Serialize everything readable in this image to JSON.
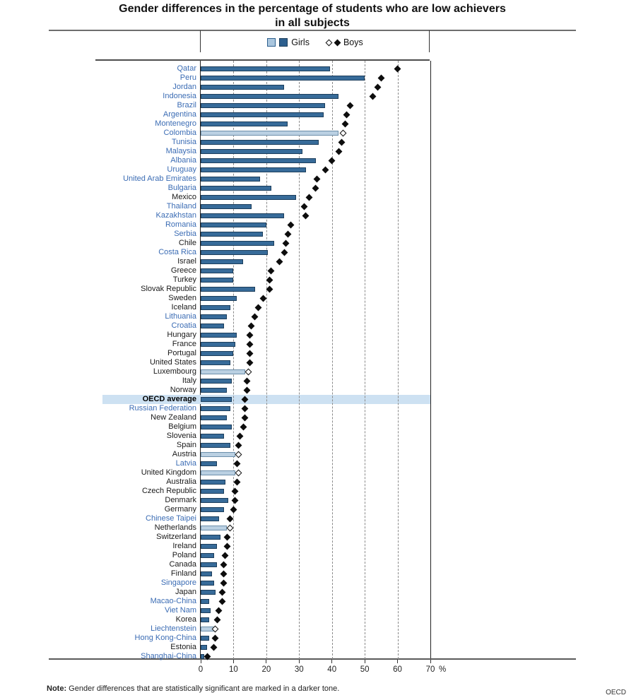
{
  "title": {
    "line1": "Gender differences in the percentage of students who are low achievers",
    "line2": "in all subjects"
  },
  "legend": {
    "girls_label": "Girls",
    "boys_label": "Boys"
  },
  "axis": {
    "ticks": [
      0,
      10,
      20,
      30,
      40,
      50,
      60,
      70
    ],
    "unit": "%",
    "min": 0,
    "max": 70
  },
  "note": {
    "prefix": "Note:",
    "text": "Gender differences that are statistically significant are marked in a darker tone."
  },
  "source": "OECD",
  "colors": {
    "bar_significant": "#376b99",
    "bar_not_significant": "#bad0e2",
    "diamond": "#0d0d0d",
    "partner_label": "#3b6cb4",
    "oecd_label": "#191919",
    "highlight_band": "#cde1f2",
    "gridline": "#8a8a8a"
  },
  "chart_data": {
    "type": "bar",
    "orientation": "horizontal",
    "title": "Gender differences in the percentage of students who are low achievers in all subjects",
    "xlabel": "%",
    "xlim": [
      0,
      70
    ],
    "grid": "vertical dashed lines every 10",
    "legend_position": "top-center",
    "series": [
      {
        "name": "Girls",
        "style": "bar"
      },
      {
        "name": "Boys",
        "style": "diamond"
      }
    ],
    "significance_note": "darker tone / filled diamond = statistically significant gender difference",
    "rows": [
      {
        "country": "Qatar",
        "group": "partner",
        "girls": 39.5,
        "boys": 60,
        "significant": true
      },
      {
        "country": "Peru",
        "group": "partner",
        "girls": 50,
        "boys": 55,
        "significant": true
      },
      {
        "country": "Jordan",
        "group": "partner",
        "girls": 25.5,
        "boys": 54,
        "significant": true
      },
      {
        "country": "Indonesia",
        "group": "partner",
        "girls": 42,
        "boys": 52.5,
        "significant": true
      },
      {
        "country": "Brazil",
        "group": "partner",
        "girls": 38,
        "boys": 45.5,
        "significant": true
      },
      {
        "country": "Argentina",
        "group": "partner",
        "girls": 37.5,
        "boys": 44.5,
        "significant": true
      },
      {
        "country": "Montenegro",
        "group": "partner",
        "girls": 26.5,
        "boys": 44,
        "significant": true
      },
      {
        "country": "Colombia",
        "group": "partner",
        "girls": 42,
        "boys": 43.5,
        "significant": false
      },
      {
        "country": "Tunisia",
        "group": "partner",
        "girls": 36,
        "boys": 43,
        "significant": true
      },
      {
        "country": "Malaysia",
        "group": "partner",
        "girls": 31,
        "boys": 42,
        "significant": true
      },
      {
        "country": "Albania",
        "group": "partner",
        "girls": 35,
        "boys": 40,
        "significant": true
      },
      {
        "country": "Uruguay",
        "group": "partner",
        "girls": 32,
        "boys": 38,
        "significant": true
      },
      {
        "country": "United Arab Emirates",
        "group": "partner",
        "girls": 18,
        "boys": 35.5,
        "significant": true
      },
      {
        "country": "Bulgaria",
        "group": "partner",
        "girls": 21.5,
        "boys": 35,
        "significant": true
      },
      {
        "country": "Mexico",
        "group": "oecd",
        "girls": 29,
        "boys": 33,
        "significant": true
      },
      {
        "country": "Thailand",
        "group": "partner",
        "girls": 15.5,
        "boys": 31.5,
        "significant": true
      },
      {
        "country": "Kazakhstan",
        "group": "partner",
        "girls": 25.5,
        "boys": 32,
        "significant": true
      },
      {
        "country": "Romania",
        "group": "partner",
        "girls": 20,
        "boys": 27.5,
        "significant": true
      },
      {
        "country": "Serbia",
        "group": "partner",
        "girls": 19,
        "boys": 26.5,
        "significant": true
      },
      {
        "country": "Chile",
        "group": "oecd",
        "girls": 22.5,
        "boys": 26,
        "significant": true
      },
      {
        "country": "Costa Rica",
        "group": "partner",
        "girls": 20.5,
        "boys": 25.5,
        "significant": true
      },
      {
        "country": "Israel",
        "group": "oecd",
        "girls": 13,
        "boys": 24,
        "significant": true
      },
      {
        "country": "Greece",
        "group": "oecd",
        "girls": 10,
        "boys": 21.5,
        "significant": true
      },
      {
        "country": "Turkey",
        "group": "oecd",
        "girls": 10,
        "boys": 21,
        "significant": true
      },
      {
        "country": "Slovak Republic",
        "group": "oecd",
        "girls": 16.5,
        "boys": 21,
        "significant": true
      },
      {
        "country": "Sweden",
        "group": "oecd",
        "girls": 11,
        "boys": 19,
        "significant": true
      },
      {
        "country": "Iceland",
        "group": "oecd",
        "girls": 9,
        "boys": 17.5,
        "significant": true
      },
      {
        "country": "Lithuania",
        "group": "partner",
        "girls": 8,
        "boys": 16.5,
        "significant": true
      },
      {
        "country": "Croatia",
        "group": "partner",
        "girls": 7,
        "boys": 15.5,
        "significant": true
      },
      {
        "country": "Hungary",
        "group": "oecd",
        "girls": 11,
        "boys": 15,
        "significant": true
      },
      {
        "country": "France",
        "group": "oecd",
        "girls": 10.5,
        "boys": 15,
        "significant": true
      },
      {
        "country": "Portugal",
        "group": "oecd",
        "girls": 10,
        "boys": 15,
        "significant": true
      },
      {
        "country": "United States",
        "group": "oecd",
        "girls": 9,
        "boys": 15,
        "significant": true
      },
      {
        "country": "Luxembourg",
        "group": "oecd",
        "girls": 13.5,
        "boys": 14.5,
        "significant": false
      },
      {
        "country": "Italy",
        "group": "oecd",
        "girls": 9.5,
        "boys": 14,
        "significant": true
      },
      {
        "country": "Norway",
        "group": "oecd",
        "girls": 8,
        "boys": 14,
        "significant": true
      },
      {
        "country": "OECD average",
        "group": "oecd",
        "girls": 9.5,
        "boys": 13.5,
        "significant": true,
        "bold": true,
        "highlight": true
      },
      {
        "country": "Russian Federation",
        "group": "partner",
        "girls": 9,
        "boys": 13.5,
        "significant": true
      },
      {
        "country": "New Zealand",
        "group": "oecd",
        "girls": 8,
        "boys": 13.5,
        "significant": true
      },
      {
        "country": "Belgium",
        "group": "oecd",
        "girls": 9.5,
        "boys": 13,
        "significant": true
      },
      {
        "country": "Slovenia",
        "group": "oecd",
        "girls": 7,
        "boys": 12,
        "significant": true
      },
      {
        "country": "Spain",
        "group": "oecd",
        "girls": 9,
        "boys": 11.5,
        "significant": true
      },
      {
        "country": "Austria",
        "group": "oecd",
        "girls": 10.5,
        "boys": 11.5,
        "significant": false
      },
      {
        "country": "Latvia",
        "group": "partner",
        "girls": 5,
        "boys": 11,
        "significant": true
      },
      {
        "country": "United Kingdom",
        "group": "oecd",
        "girls": 10.5,
        "boys": 11.5,
        "significant": false
      },
      {
        "country": "Australia",
        "group": "oecd",
        "girls": 7.5,
        "boys": 11,
        "significant": true
      },
      {
        "country": "Czech Republic",
        "group": "oecd",
        "girls": 7,
        "boys": 10.5,
        "significant": true
      },
      {
        "country": "Denmark",
        "group": "oecd",
        "girls": 8.5,
        "boys": 10.5,
        "significant": true
      },
      {
        "country": "Germany",
        "group": "oecd",
        "girls": 7,
        "boys": 10,
        "significant": true
      },
      {
        "country": "Chinese Taipei",
        "group": "partner",
        "girls": 5.5,
        "boys": 9,
        "significant": true
      },
      {
        "country": "Netherlands",
        "group": "oecd",
        "girls": 8,
        "boys": 9,
        "significant": false
      },
      {
        "country": "Switzerland",
        "group": "oecd",
        "girls": 6,
        "boys": 8,
        "significant": true
      },
      {
        "country": "Ireland",
        "group": "oecd",
        "girls": 5,
        "boys": 8,
        "significant": true
      },
      {
        "country": "Poland",
        "group": "oecd",
        "girls": 4,
        "boys": 7.5,
        "significant": true
      },
      {
        "country": "Canada",
        "group": "oecd",
        "girls": 5,
        "boys": 7,
        "significant": true
      },
      {
        "country": "Finland",
        "group": "oecd",
        "girls": 3.5,
        "boys": 7,
        "significant": true
      },
      {
        "country": "Singapore",
        "group": "partner",
        "girls": 4,
        "boys": 7,
        "significant": true
      },
      {
        "country": "Japan",
        "group": "oecd",
        "girls": 4.5,
        "boys": 6.5,
        "significant": true
      },
      {
        "country": "Macao-China",
        "group": "partner",
        "girls": 2.5,
        "boys": 6.5,
        "significant": true
      },
      {
        "country": "Viet Nam",
        "group": "partner",
        "girls": 3,
        "boys": 5.5,
        "significant": true
      },
      {
        "country": "Korea",
        "group": "oecd",
        "girls": 2.5,
        "boys": 5,
        "significant": true
      },
      {
        "country": "Liechtenstein",
        "group": "partner",
        "girls": 4,
        "boys": 4.5,
        "significant": false
      },
      {
        "country": "Hong Kong-China",
        "group": "partner",
        "girls": 2.5,
        "boys": 4.5,
        "significant": true
      },
      {
        "country": "Estonia",
        "group": "oecd",
        "girls": 2,
        "boys": 4,
        "significant": true
      },
      {
        "country": "Shanghai-China",
        "group": "partner",
        "girls": 1,
        "boys": 2,
        "significant": true
      }
    ]
  }
}
